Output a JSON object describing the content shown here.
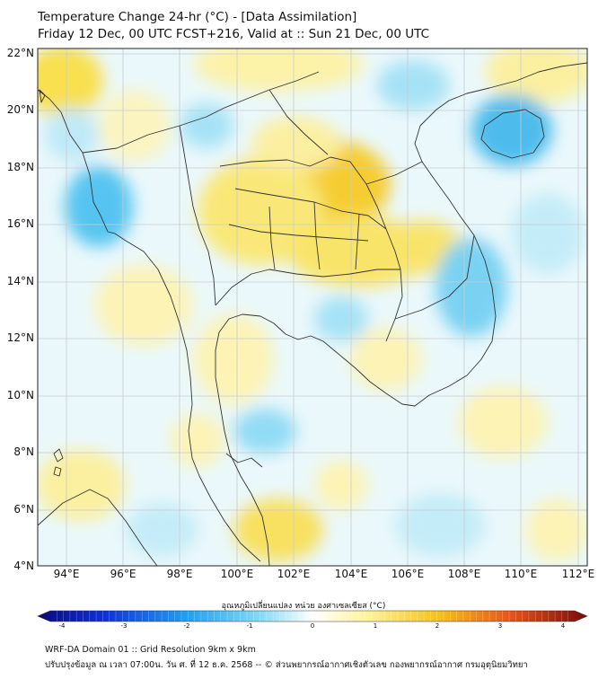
{
  "header": {
    "title_line1": "Temperature Change 24-hr (°C) - [Data Assimilation]",
    "title_line2": "Friday 12 Dec, 00 UTC FCST+216, Valid at :: Sun 21 Dec, 00 UTC"
  },
  "map": {
    "lat_labels": [
      "22°N",
      "20°N",
      "18°N",
      "16°N",
      "14°N",
      "12°N",
      "10°N",
      "8°N",
      "6°N",
      "4°N"
    ],
    "lon_labels": [
      "94°E",
      "96°E",
      "98°E",
      "100°E",
      "102°E",
      "104°E",
      "106°E",
      "108°E",
      "110°E",
      "112°E"
    ],
    "lat_range": [
      4,
      22.2
    ],
    "lon_range": [
      93,
      112.3
    ],
    "gridline_color": "#c8ccd0",
    "coastline_color": "#333333"
  },
  "colorbar": {
    "title": "อุณหภูมิเปลี่ยนแปลง หน่วย องศาเซลเซียส (°C)",
    "ticks": [
      "-4",
      "-3",
      "-2",
      "-1",
      "0",
      "1",
      "2",
      "3",
      "4"
    ],
    "range": [
      -4,
      4
    ],
    "colors": [
      "#0a0a7a",
      "#1030d8",
      "#1ea0f0",
      "#7fd8f5",
      "#ffffff",
      "#fff39a",
      "#f5c21a",
      "#e8541a",
      "#7a0a0a"
    ]
  },
  "footer": {
    "line1": "WRF-DA Domain 01 :: Grid Resolution 9km x 9km",
    "line2": "ปรับปรุงข้อมูล ณ เวลา 07:00น. วัน ศ. ที่ 12 ธ.ค. 2568 -- © ส่วนพยากรณ์อากาศเชิงตัวเลข กองพยากรณ์อากาศ กรมอุตุนิยมวิทยา"
  }
}
